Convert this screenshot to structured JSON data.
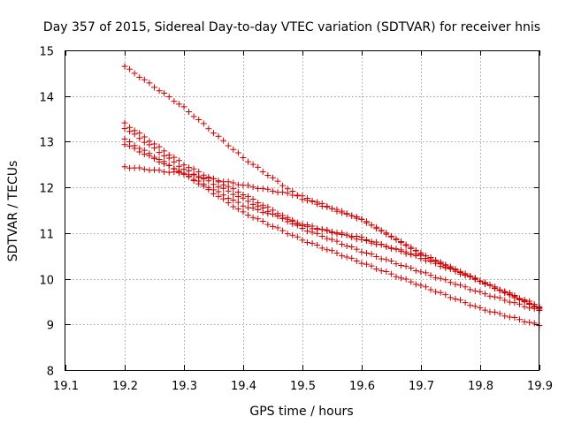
{
  "chart_data": {
    "type": "scatter",
    "title": "Day 357 of 2015, Sidereal Day-to-day VTEC variation (SDTVAR) for receiver hnis",
    "xlabel": "GPS time / hours",
    "ylabel": "SDTVAR / TECUs",
    "xlim": [
      19.1,
      19.9
    ],
    "ylim": [
      8,
      15
    ],
    "xticks": [
      "19.1",
      "19.2",
      "19.3",
      "19.4",
      "19.5",
      "19.6",
      "19.7",
      "19.8",
      "19.9"
    ],
    "yticks": [
      "8",
      "9",
      "10",
      "11",
      "12",
      "13",
      "14",
      "15"
    ],
    "grid": true,
    "marker": "+",
    "color": "#cc0000",
    "series": [
      {
        "name": "s1",
        "x_start": 19.2,
        "x_end": 19.9,
        "step": 0.00833,
        "anchors": [
          [
            19.2,
            14.65
          ],
          [
            19.3,
            13.75
          ],
          [
            19.4,
            12.65
          ],
          [
            19.5,
            11.75
          ],
          [
            19.6,
            11.3
          ],
          [
            19.7,
            10.55
          ],
          [
            19.8,
            9.95
          ],
          [
            19.9,
            9.35
          ]
        ]
      },
      {
        "name": "s2",
        "x_start": 19.2,
        "x_end": 19.9,
        "step": 0.00833,
        "anchors": [
          [
            19.2,
            13.4
          ],
          [
            19.3,
            12.5
          ],
          [
            19.4,
            11.85
          ],
          [
            19.5,
            11.15
          ],
          [
            19.6,
            10.9
          ],
          [
            19.7,
            10.45
          ],
          [
            19.8,
            9.95
          ],
          [
            19.9,
            9.35
          ]
        ]
      },
      {
        "name": "s3",
        "x_start": 19.2,
        "x_end": 19.9,
        "step": 0.00833,
        "anchors": [
          [
            19.2,
            13.3
          ],
          [
            19.3,
            12.4
          ],
          [
            19.4,
            11.75
          ],
          [
            19.5,
            11.1
          ],
          [
            19.6,
            10.6
          ],
          [
            19.7,
            10.15
          ],
          [
            19.8,
            9.7
          ],
          [
            19.9,
            9.3
          ]
        ]
      },
      {
        "name": "s4",
        "x_start": 19.2,
        "x_end": 19.9,
        "step": 0.00833,
        "anchors": [
          [
            19.2,
            13.05
          ],
          [
            19.3,
            12.3
          ],
          [
            19.4,
            11.6
          ],
          [
            19.5,
            11.2
          ],
          [
            19.6,
            10.85
          ],
          [
            19.7,
            10.5
          ],
          [
            19.8,
            9.95
          ],
          [
            19.9,
            9.4
          ]
        ]
      },
      {
        "name": "s5",
        "x_start": 19.2,
        "x_end": 19.9,
        "step": 0.00833,
        "anchors": [
          [
            19.2,
            12.45
          ],
          [
            19.3,
            12.3
          ],
          [
            19.4,
            12.05
          ],
          [
            19.5,
            11.8
          ],
          [
            19.6,
            11.3
          ],
          [
            19.7,
            10.55
          ],
          [
            19.8,
            9.95
          ],
          [
            19.9,
            9.35
          ]
        ]
      },
      {
        "name": "s6",
        "x_start": 19.2,
        "x_end": 19.9,
        "step": 0.00833,
        "anchors": [
          [
            19.2,
            12.95
          ],
          [
            19.3,
            12.3
          ],
          [
            19.4,
            11.45
          ],
          [
            19.5,
            10.85
          ],
          [
            19.6,
            10.35
          ],
          [
            19.7,
            9.85
          ],
          [
            19.8,
            9.35
          ],
          [
            19.9,
            8.98
          ]
        ]
      }
    ]
  }
}
